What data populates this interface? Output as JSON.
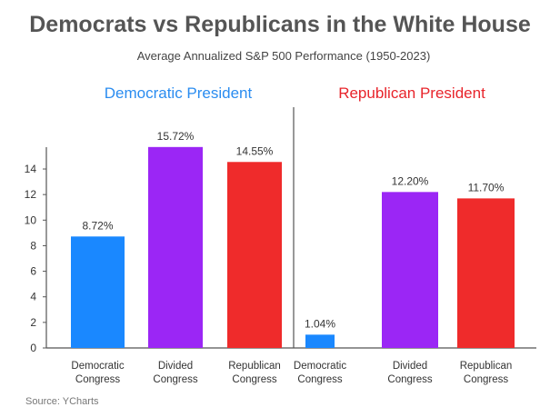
{
  "chart_data": {
    "type": "bar",
    "title": "Democrats vs Republicans in the White House",
    "subtitle": "Average Annualized S&P 500 Performance (1950-2023)",
    "source": "Source: YCharts",
    "ylim": [
      0,
      15.72
    ],
    "yticks": [
      0,
      2,
      4,
      6,
      8,
      10,
      12,
      14
    ],
    "grid": false,
    "groups": [
      {
        "name": "Democratic President",
        "color": "#2a8cf0",
        "bars": [
          {
            "line1": "Democratic",
            "line2": "Congress",
            "value": 8.72,
            "label": "8.72%",
            "color": "#1a88ff"
          },
          {
            "line1": "Divided",
            "line2": "Congress",
            "value": 15.72,
            "label": "15.72%",
            "color": "#9b26f5"
          },
          {
            "line1": "Republican",
            "line2": "Congress",
            "value": 14.55,
            "label": "14.55%",
            "color": "#ef2b2b"
          }
        ]
      },
      {
        "name": "Republican President",
        "color": "#e8242b",
        "bars": [
          {
            "line1": "Democratic",
            "line2": "Congress",
            "value": 1.04,
            "label": "1.04%",
            "color": "#1a88ff"
          },
          {
            "line1": "Divided",
            "line2": "Congress",
            "value": 12.2,
            "label": "12.20%",
            "color": "#9b26f5"
          },
          {
            "line1": "Republican",
            "line2": "Congress",
            "value": 11.7,
            "label": "11.70%",
            "color": "#ef2b2b"
          }
        ]
      }
    ]
  }
}
